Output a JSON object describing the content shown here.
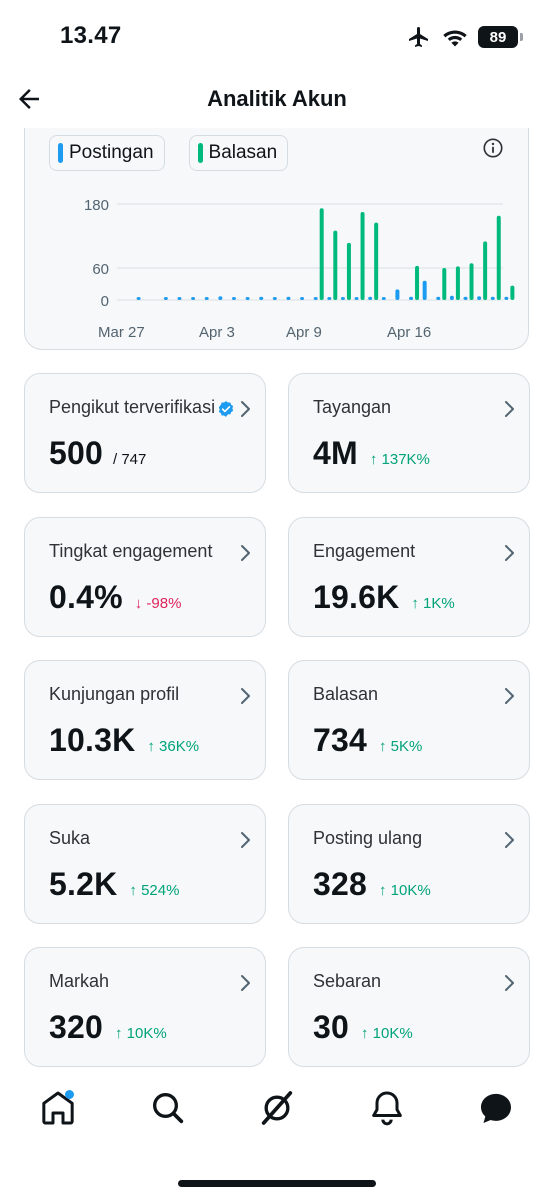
{
  "status_bar": {
    "time": "13.47",
    "battery": "89"
  },
  "header": {
    "title": "Analitik Akun"
  },
  "colors": {
    "postingan": "#1d9bf0",
    "balasan": "#00ba7c",
    "up": "#00a37a",
    "down": "#e0245e"
  },
  "chart_data": {
    "type": "bar",
    "legend": [
      "Postingan",
      "Balasan"
    ],
    "x_tick_labels": [
      "Mar 27",
      "Apr 3",
      "Apr 9",
      "Apr 16"
    ],
    "y_tick_labels": [
      "180",
      "60",
      "0"
    ],
    "ylim": [
      0,
      200
    ],
    "grid": true,
    "categories": [
      "Mar 27",
      "Mar 28",
      "Mar 29",
      "Mar 30",
      "Mar 31",
      "Apr 1",
      "Apr 2",
      "Apr 3",
      "Apr 4",
      "Apr 5",
      "Apr 6",
      "Apr 7",
      "Apr 8",
      "Apr 9",
      "Apr 10",
      "Apr 11",
      "Apr 12",
      "Apr 13",
      "Apr 14",
      "Apr 15",
      "Apr 16",
      "Apr 17",
      "Apr 18",
      "Apr 19",
      "Apr 20",
      "Apr 21",
      "Apr 22",
      "Apr 23",
      "Apr 24",
      "Apr 25"
    ],
    "series": [
      {
        "name": "Postingan",
        "values": [
          0,
          1,
          0,
          2,
          3,
          4,
          5,
          7,
          2,
          4,
          6,
          5,
          6,
          5,
          4,
          5,
          4,
          5,
          6,
          5,
          20,
          6,
          36,
          6,
          8,
          6,
          7,
          6,
          6,
          0
        ]
      },
      {
        "name": "Balasan",
        "values": [
          0,
          0,
          0,
          0,
          0,
          0,
          0,
          0,
          0,
          0,
          0,
          0,
          0,
          0,
          172,
          130,
          107,
          165,
          145,
          0,
          0,
          64,
          0,
          60,
          63,
          69,
          110,
          158,
          27,
          0
        ]
      }
    ]
  },
  "metrics": [
    {
      "label": "Pengikut terverifikasi",
      "value": "500",
      "sub": "/ 747",
      "change": "",
      "dir": "none",
      "verified": true
    },
    {
      "label": "Tayangan",
      "value": "4M",
      "change": "↑ 137K%",
      "dir": "up"
    },
    {
      "label": "Tingkat engagement",
      "value": "0.4%",
      "change": "↓ -98%",
      "dir": "down"
    },
    {
      "label": "Engagement",
      "value": "19.6K",
      "change": "↑ 1K%",
      "dir": "up"
    },
    {
      "label": "Kunjungan profil",
      "value": "10.3K",
      "change": "↑ 36K%",
      "dir": "up"
    },
    {
      "label": "Balasan",
      "value": "734",
      "change": "↑ 5K%",
      "dir": "up"
    },
    {
      "label": "Suka",
      "value": "5.2K",
      "change": "↑ 524%",
      "dir": "up"
    },
    {
      "label": "Posting ulang",
      "value": "328",
      "change": "↑ 10K%",
      "dir": "up"
    },
    {
      "label": "Markah",
      "value": "320",
      "change": "↑ 10K%",
      "dir": "up"
    },
    {
      "label": "Sebaran",
      "value": "30",
      "change": "↑ 10K%",
      "dir": "up"
    }
  ],
  "nav": [
    "home-icon",
    "search-icon",
    "grok-icon",
    "bell-icon",
    "messages-icon"
  ]
}
